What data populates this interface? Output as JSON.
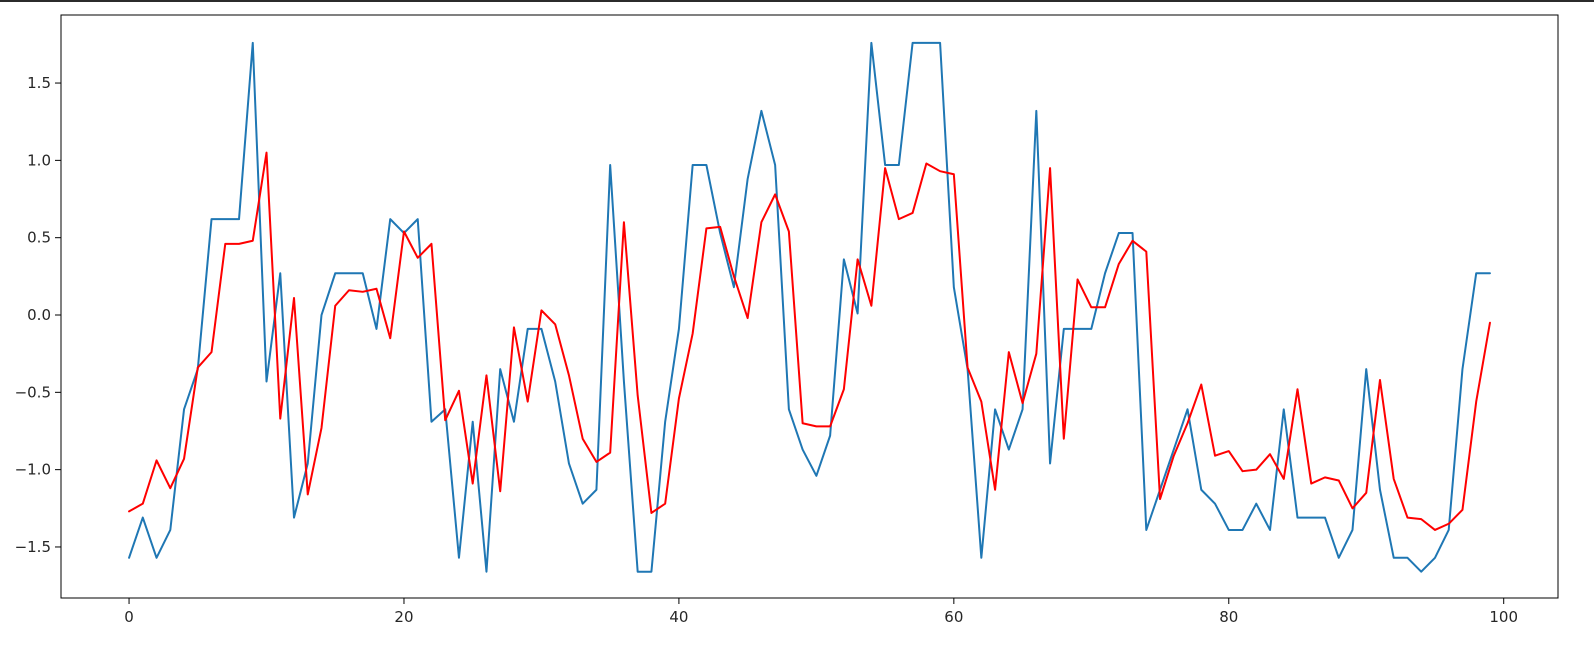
{
  "chart_data": {
    "type": "line",
    "title": "",
    "xlabel": "",
    "ylabel": "",
    "xlim": [
      -4.95,
      103.95
    ],
    "ylim": [
      -1.83,
      1.94
    ],
    "xticks": [
      0,
      20,
      40,
      60,
      80,
      100
    ],
    "xtick_labels": [
      "0",
      "20",
      "40",
      "60",
      "80",
      "100"
    ],
    "yticks": [
      -1.5,
      -1.0,
      -0.5,
      0.0,
      0.5,
      1.0,
      1.5
    ],
    "ytick_labels": [
      "−1.5",
      "−1.0",
      "−0.5",
      "0.0",
      "0.5",
      "1.0",
      "1.5"
    ],
    "grid": false,
    "legend": "none",
    "x": [
      0,
      1,
      2,
      3,
      4,
      5,
      6,
      7,
      8,
      9,
      10,
      11,
      12,
      13,
      14,
      15,
      16,
      17,
      18,
      19,
      20,
      21,
      22,
      23,
      24,
      25,
      26,
      27,
      28,
      29,
      30,
      31,
      32,
      33,
      34,
      35,
      36,
      37,
      38,
      39,
      40,
      41,
      42,
      43,
      44,
      45,
      46,
      47,
      48,
      49,
      50,
      51,
      52,
      53,
      54,
      55,
      56,
      57,
      58,
      59,
      60,
      61,
      62,
      63,
      64,
      65,
      66,
      67,
      68,
      69,
      70,
      71,
      72,
      73,
      74,
      75,
      76,
      77,
      78,
      79,
      80,
      81,
      82,
      83,
      84,
      85,
      86,
      87,
      88,
      89,
      90,
      91,
      92,
      93,
      94,
      95,
      96,
      97,
      98,
      99
    ],
    "series": [
      {
        "color": "#1f77b4",
        "values": [
          -1.57,
          -1.31,
          -1.57,
          -1.39,
          -0.61,
          -0.35,
          0.62,
          0.62,
          0.62,
          1.76,
          -0.43,
          0.27,
          -1.31,
          -0.96,
          0.0,
          0.27,
          0.27,
          0.27,
          -0.09,
          0.62,
          0.53,
          0.62,
          -0.69,
          -0.61,
          -1.57,
          -0.69,
          -1.66,
          -0.35,
          -0.69,
          -0.09,
          -0.09,
          -0.43,
          -0.96,
          -1.22,
          -1.13,
          0.97,
          -0.43,
          -1.66,
          -1.66,
          -0.69,
          -0.09,
          0.97,
          0.97,
          0.53,
          0.18,
          0.88,
          1.32,
          0.97,
          -0.61,
          -0.87,
          -1.04,
          -0.78,
          0.36,
          0.01,
          1.76,
          0.97,
          0.97,
          1.76,
          1.76,
          1.76,
          0.18,
          -0.35,
          -1.57,
          -0.61,
          -0.87,
          -0.61,
          1.32,
          -0.96,
          -0.09,
          -0.09,
          -0.09,
          0.27,
          0.53,
          0.53,
          -1.39,
          -1.13,
          -0.87,
          -0.61,
          -1.13,
          -1.22,
          -1.39,
          -1.39,
          -1.22,
          -1.39,
          -0.61,
          -1.31,
          -1.31,
          -1.31,
          -1.57,
          -1.39,
          -0.35,
          -1.13,
          -1.57,
          -1.57,
          -1.66,
          -1.57,
          -1.39,
          -0.35,
          0.27,
          0.27
        ]
      },
      {
        "color": "#ff0000",
        "values": [
          -1.27,
          -1.22,
          -0.94,
          -1.12,
          -0.93,
          -0.34,
          -0.24,
          0.46,
          0.46,
          0.48,
          1.05,
          -0.67,
          0.11,
          -1.16,
          -0.73,
          0.06,
          0.16,
          0.15,
          0.17,
          -0.15,
          0.54,
          0.37,
          0.46,
          -0.68,
          -0.49,
          -1.09,
          -0.39,
          -1.14,
          -0.08,
          -0.56,
          0.03,
          -0.06,
          -0.39,
          -0.8,
          -0.95,
          -0.89,
          0.6,
          -0.52,
          -1.28,
          -1.22,
          -0.54,
          -0.12,
          0.56,
          0.57,
          0.25,
          -0.02,
          0.6,
          0.78,
          0.54,
          -0.7,
          -0.72,
          -0.72,
          -0.48,
          0.36,
          0.06,
          0.95,
          0.62,
          0.66,
          0.98,
          0.93,
          0.91,
          -0.34,
          -0.56,
          -1.13,
          -0.24,
          -0.57,
          -0.25,
          0.95,
          -0.8,
          0.23,
          0.05,
          0.05,
          0.33,
          0.48,
          0.41,
          -1.19,
          -0.91,
          -0.7,
          -0.45,
          -0.91,
          -0.88,
          -1.01,
          -1.0,
          -0.9,
          -1.06,
          -0.48,
          -1.09,
          -1.05,
          -1.07,
          -1.25,
          -1.15,
          -0.42,
          -1.06,
          -1.31,
          -1.32,
          -1.39,
          -1.35,
          -1.26,
          -0.56,
          -0.05
        ]
      }
    ]
  }
}
